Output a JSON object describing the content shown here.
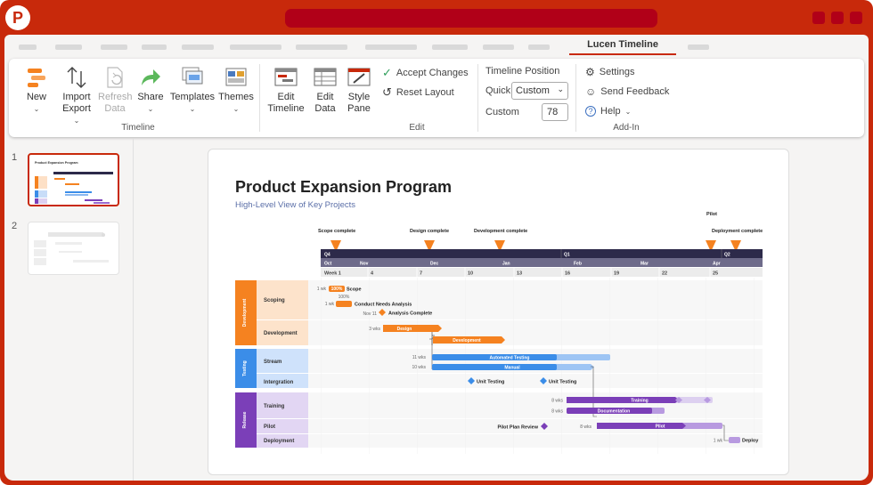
{
  "app": {
    "logo_letter": "P"
  },
  "ribbon": {
    "active_tab": "Lucen Timeline",
    "timeline_group": {
      "new": "New",
      "import": "Import",
      "export": "Export",
      "refresh": "Refresh",
      "refresh2": "Data",
      "share": "Share",
      "templates": "Templates",
      "themes": "Themes",
      "label": "Timeline"
    },
    "edit_group": {
      "edit_timeline_1": "Edit",
      "edit_timeline_2": "Timeline",
      "edit_data_1": "Edit",
      "edit_data_2": "Data",
      "style_pane_1": "Style",
      "style_pane_2": "Pane",
      "accept": "Accept Changes",
      "reset": "Reset Layout",
      "label": "Edit"
    },
    "position": {
      "title": "Timeline Position",
      "quick_label": "Quick",
      "quick_value": "Custom",
      "custom_label": "Custom",
      "custom_value": "78"
    },
    "addin_group": {
      "settings": "Settings",
      "feedback": "Send Feedback",
      "help": "Help",
      "label": "Add-In"
    }
  },
  "slides": {
    "items": [
      {
        "number": "1",
        "thumb_title": "Product Expansion Program"
      },
      {
        "number": "2"
      }
    ]
  },
  "slide": {
    "title": "Product Expansion Program",
    "subtitle": "High-Level View of Key Projects",
    "milestones": [
      "Scope complete",
      "Design complete",
      "Development complete",
      "Pilot",
      "Deployment complete"
    ],
    "quarters": [
      "Q4",
      "Q1",
      "Q2"
    ],
    "months": [
      "Oct",
      "Nov",
      "Dec",
      "Jan",
      "Feb",
      "Mar",
      "Apr"
    ],
    "weeks": [
      "Week 1",
      "4",
      "7",
      "10",
      "13",
      "16",
      "19",
      "22",
      "25"
    ],
    "groups": [
      "Development",
      "Testing",
      "Release"
    ],
    "rows": [
      "Scoping",
      "Development",
      "Stream",
      "Intergration",
      "Training",
      "Pilot",
      "Deployment"
    ],
    "tasks": {
      "scope": {
        "dur": "1 wk",
        "pct": "100%",
        "name": "Scope"
      },
      "cna": {
        "pct": "100%",
        "dur": "1 wk",
        "name": "Conduct Needs Analysis"
      },
      "ac": {
        "date": "Nov 11",
        "name": "Analysis Complete"
      },
      "design": {
        "dur": "3 wks",
        "name": "Design"
      },
      "development": {
        "name": "Development"
      },
      "auto": {
        "dur": "11 wks",
        "name": "Automated Testing"
      },
      "manual": {
        "dur": "10 wks",
        "name": "Manual"
      },
      "ut": "Unit Testing",
      "training": {
        "dur": "8 wks",
        "name": "Training"
      },
      "doc": {
        "dur": "8 wks",
        "name": "Documentation"
      },
      "ppr": "Pilot Plan Review",
      "pilot": {
        "dur": "8 wks",
        "name": "Pilot"
      },
      "deploy": {
        "dur": "1 wk",
        "name": "Deploy"
      }
    }
  },
  "colors": {
    "brand": "#c8290b",
    "dev": "#f58220",
    "test": "#3b8de8",
    "release": "#7b3fb8"
  }
}
